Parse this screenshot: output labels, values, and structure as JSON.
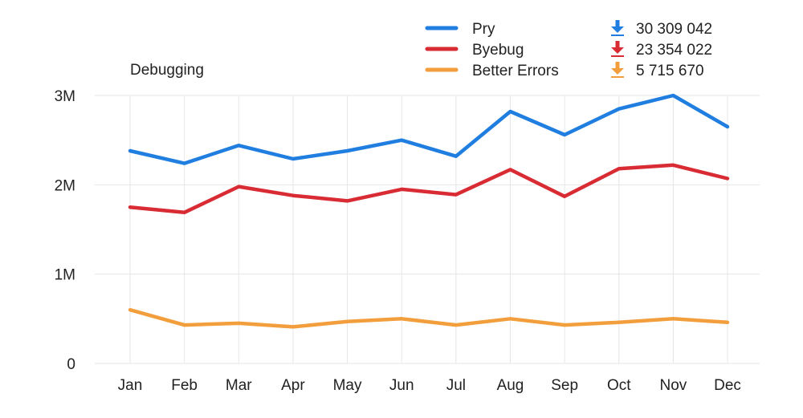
{
  "chart_data": {
    "type": "line",
    "title": "Debugging",
    "categories": [
      "Jan",
      "Feb",
      "Mar",
      "Apr",
      "May",
      "Jun",
      "Jul",
      "Aug",
      "Sep",
      "Oct",
      "Nov",
      "Dec"
    ],
    "ylim": [
      0,
      3000000
    ],
    "yticks": [
      {
        "value": 0,
        "label": "0"
      },
      {
        "value": 1000000,
        "label": "1M"
      },
      {
        "value": 2000000,
        "label": "2M"
      },
      {
        "value": 3000000,
        "label": "3M"
      }
    ],
    "grid": true,
    "legend_position": "top-right",
    "series": [
      {
        "name": "Pry",
        "color": "#1f7ee0",
        "total": "30 309 042",
        "values": [
          2380000,
          2240000,
          2440000,
          2290000,
          2380000,
          2500000,
          2320000,
          2820000,
          2560000,
          2850000,
          3000000,
          2650000
        ]
      },
      {
        "name": "Byebug",
        "color": "#d92b33",
        "total": "23 354 022",
        "values": [
          1750000,
          1690000,
          1980000,
          1880000,
          1820000,
          1950000,
          1890000,
          2170000,
          1870000,
          2180000,
          2220000,
          2070000
        ]
      },
      {
        "name": "Better Errors",
        "color": "#f29e3d",
        "total": "5 715 670",
        "values": [
          600000,
          430000,
          450000,
          410000,
          470000,
          500000,
          430000,
          500000,
          430000,
          460000,
          500000,
          460000
        ]
      }
    ]
  }
}
